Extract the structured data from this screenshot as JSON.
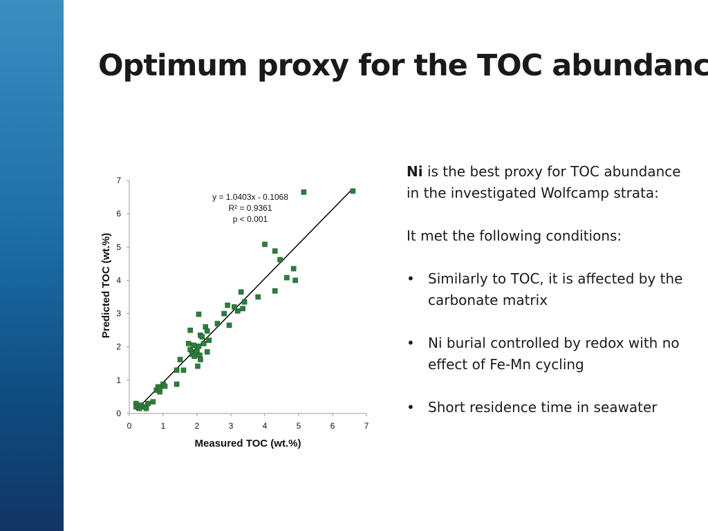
{
  "slide": {
    "title": "Optimum proxy for the TOC abundance",
    "lead_bold": "Ni",
    "lead_rest": " is the best proxy for TOC abundance in the investigated Wolfcamp strata:",
    "conditions_intro": "It met the following conditions:",
    "bullet_mark": "•",
    "bullets": [
      "Similarly to TOC, it is affected by the carbonate matrix",
      "Ni burial controlled by redox with no effect of Fe-Mn cycling",
      "Short residence time in seawater"
    ],
    "accent_color": "#1c6da6"
  },
  "chart_data": {
    "type": "scatter",
    "xlabel": "Measured TOC (wt.%)",
    "ylabel": "Predicted TOC (wt.%)",
    "xlim": [
      0,
      7
    ],
    "ylim": [
      0,
      7
    ],
    "xticks": [
      "0",
      "1",
      "2",
      "3",
      "4",
      "5",
      "6",
      "7"
    ],
    "yticks": [
      "0",
      "1",
      "2",
      "3",
      "4",
      "5",
      "6",
      "7"
    ],
    "grid": false,
    "marker_color": "#2e7d3c",
    "annotation": [
      "y = 1.0403x - 0.1068",
      "R² = 0.9361",
      "p < 0.001"
    ],
    "trendline": {
      "slope": 1.0403,
      "intercept": -0.1068,
      "x_range": [
        0.2,
        6.6
      ]
    },
    "points": [
      [
        0.2,
        0.3
      ],
      [
        0.2,
        0.2
      ],
      [
        0.3,
        0.15
      ],
      [
        0.35,
        0.25
      ],
      [
        0.45,
        0.2
      ],
      [
        0.5,
        0.15
      ],
      [
        0.55,
        0.3
      ],
      [
        0.7,
        0.35
      ],
      [
        0.8,
        0.7
      ],
      [
        0.85,
        0.8
      ],
      [
        0.9,
        0.65
      ],
      [
        0.9,
        0.75
      ],
      [
        1.0,
        0.88
      ],
      [
        1.05,
        0.82
      ],
      [
        1.4,
        0.88
      ],
      [
        1.4,
        1.3
      ],
      [
        1.5,
        1.62
      ],
      [
        1.6,
        1.3
      ],
      [
        1.75,
        2.1
      ],
      [
        1.8,
        1.92
      ],
      [
        1.8,
        2.5
      ],
      [
        1.85,
        1.78
      ],
      [
        1.9,
        2.05
      ],
      [
        1.92,
        1.72
      ],
      [
        1.95,
        1.85
      ],
      [
        2.0,
        1.9
      ],
      [
        2.02,
        1.42
      ],
      [
        2.05,
        2.98
      ],
      [
        2.05,
        2.02
      ],
      [
        2.08,
        1.75
      ],
      [
        2.1,
        2.35
      ],
      [
        2.1,
        1.62
      ],
      [
        2.15,
        2.3
      ],
      [
        2.2,
        2.1
      ],
      [
        2.25,
        2.6
      ],
      [
        2.3,
        2.48
      ],
      [
        2.3,
        1.85
      ],
      [
        2.35,
        2.2
      ],
      [
        2.6,
        2.7
      ],
      [
        2.8,
        3.0
      ],
      [
        2.9,
        3.25
      ],
      [
        2.95,
        2.65
      ],
      [
        3.1,
        3.2
      ],
      [
        3.2,
        3.08
      ],
      [
        3.3,
        3.65
      ],
      [
        3.35,
        3.15
      ],
      [
        3.4,
        3.35
      ],
      [
        3.8,
        3.5
      ],
      [
        4.0,
        5.08
      ],
      [
        4.3,
        4.88
      ],
      [
        4.3,
        3.68
      ],
      [
        4.45,
        4.62
      ],
      [
        4.65,
        4.08
      ],
      [
        4.85,
        4.35
      ],
      [
        4.9,
        4.0
      ],
      [
        5.15,
        6.65
      ],
      [
        6.6,
        6.68
      ]
    ]
  }
}
